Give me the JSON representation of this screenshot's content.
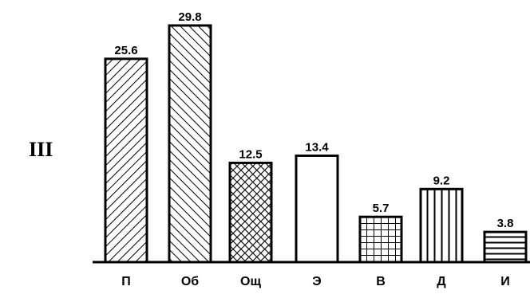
{
  "panel_label": "III",
  "chart_data": {
    "type": "bar",
    "title": "",
    "xlabel": "",
    "ylabel": "",
    "ylim": [
      0,
      30
    ],
    "grid": false,
    "categories": [
      "П",
      "Об",
      "Ощ",
      "Э",
      "В",
      "Д",
      "И"
    ],
    "values": [
      25.6,
      29.8,
      12.5,
      13.4,
      5.7,
      9.2,
      3.8
    ],
    "value_labels": [
      "25.6",
      "29.8",
      "12.5",
      "13.4",
      "5.7",
      "9.2",
      "3.8"
    ],
    "fill_patterns": [
      "diagonal-hatch",
      "diagonal-hatch-reverse",
      "crosshatch",
      "empty",
      "grid",
      "vertical-lines",
      "horizontal-lines"
    ],
    "colors": {
      "stroke": "#000000",
      "background": "#ffffff"
    }
  }
}
